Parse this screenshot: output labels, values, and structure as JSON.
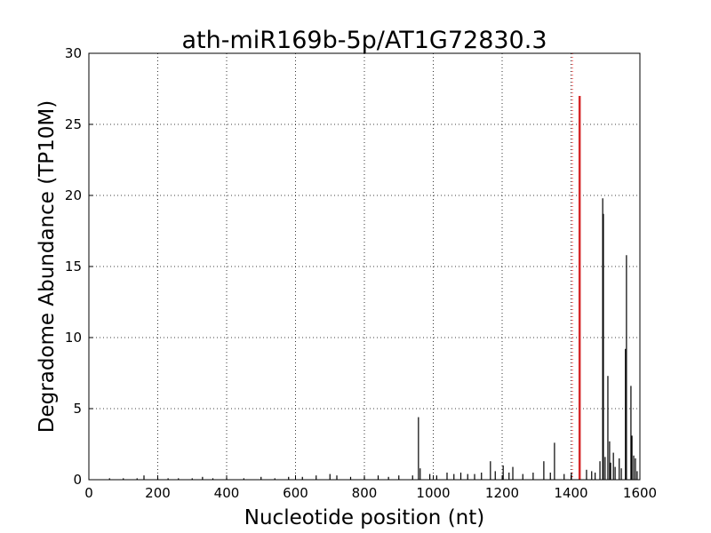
{
  "chart_data": {
    "type": "spikes",
    "title": "ath-miR169b-5p/AT1G72830.3",
    "xlabel": "Nucleotide position (nt)",
    "ylabel": "Degradome Abundance (TP10M)",
    "xlim": [
      0,
      1600
    ],
    "ylim": [
      0,
      30
    ],
    "xticks": [
      0,
      200,
      400,
      600,
      800,
      1000,
      1200,
      1400,
      1600
    ],
    "yticks": [
      0,
      5,
      10,
      15,
      20,
      25,
      30
    ],
    "grid": true,
    "marker_x": 1404,
    "marker_color": "#ff0000",
    "series": [
      {
        "color": "#000000",
        "x": [
          60,
          100,
          140,
          160,
          200,
          230,
          260,
          300,
          330,
          360,
          400,
          450,
          500,
          540,
          580,
          620,
          660,
          700,
          720,
          760,
          800,
          840,
          870,
          900,
          940,
          957,
          962,
          990,
          1010,
          1040,
          1060,
          1080,
          1100,
          1120,
          1140,
          1166,
          1180,
          1203,
          1220,
          1231,
          1260,
          1290,
          1321,
          1340,
          1352,
          1380,
          1401,
          1445,
          1460,
          1470,
          1484,
          1492,
          1494,
          1499,
          1507,
          1512,
          1515,
          1523,
          1528,
          1540,
          1546,
          1558,
          1561,
          1574,
          1577,
          1582,
          1587,
          1592
        ],
        "values": [
          0.1,
          0.1,
          0.1,
          0.3,
          0.1,
          0.1,
          0.1,
          0.1,
          0.2,
          0.1,
          0.1,
          0.1,
          0.2,
          0.1,
          0.2,
          0.2,
          0.3,
          0.4,
          0.3,
          0.2,
          0.2,
          0.3,
          0.2,
          0.3,
          0.3,
          4.4,
          0.8,
          0.4,
          0.3,
          0.5,
          0.4,
          0.5,
          0.4,
          0.4,
          0.5,
          1.3,
          0.6,
          1.0,
          0.5,
          0.9,
          0.4,
          0.5,
          1.3,
          0.5,
          2.6,
          0.4,
          0.5,
          0.7,
          0.6,
          0.5,
          1.3,
          19.8,
          18.7,
          1.6,
          7.3,
          2.7,
          1.2,
          1.9,
          0.9,
          1.5,
          0.8,
          9.2,
          15.8,
          6.6,
          3.1,
          1.7,
          1.5,
          0.6
        ],
        "width": 1.2
      },
      {
        "color": "#d62728",
        "x": [
          1425
        ],
        "values": [
          27
        ],
        "width": 2.5
      }
    ]
  }
}
